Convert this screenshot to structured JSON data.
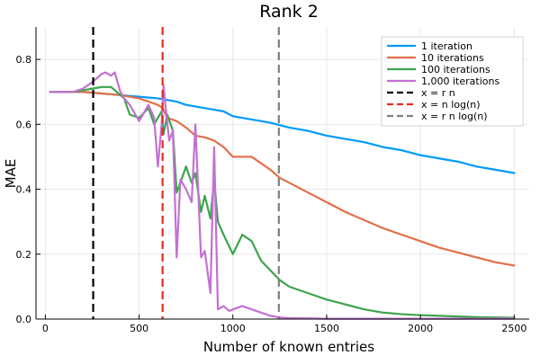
{
  "chart_data": {
    "type": "line",
    "title": "Rank 2",
    "xlabel": "Number of known entries",
    "ylabel": "MAE",
    "xlim": [
      -50,
      2580
    ],
    "ylim": [
      0.0,
      0.9
    ],
    "xticks": [
      0,
      500,
      1000,
      1500,
      2000,
      2500
    ],
    "xtick_labels": [
      "0",
      "500",
      "1000",
      "1500",
      "2000",
      "2500"
    ],
    "yticks": [
      0.0,
      0.2,
      0.4,
      0.6,
      0.8
    ],
    "ytick_labels": [
      "0.0",
      "0.2",
      "0.4",
      "0.6",
      "0.8"
    ],
    "grid": true,
    "legend_position": "top-right",
    "series": [
      {
        "name": "1 iteration",
        "color": "#009AFA",
        "x": [
          25,
          100,
          200,
          300,
          400,
          500,
          600,
          650,
          700,
          750,
          800,
          850,
          900,
          950,
          1000,
          1100,
          1200,
          1300,
          1400,
          1500,
          1600,
          1700,
          1800,
          1900,
          2000,
          2100,
          2200,
          2300,
          2400,
          2500
        ],
        "y": [
          0.7,
          0.7,
          0.7,
          0.695,
          0.69,
          0.685,
          0.68,
          0.675,
          0.67,
          0.66,
          0.655,
          0.65,
          0.645,
          0.64,
          0.625,
          0.615,
          0.605,
          0.59,
          0.58,
          0.565,
          0.555,
          0.545,
          0.53,
          0.52,
          0.505,
          0.495,
          0.485,
          0.47,
          0.46,
          0.45
        ]
      },
      {
        "name": "10 iterations",
        "color": "#E36F47",
        "x": [
          25,
          100,
          200,
          300,
          400,
          500,
          550,
          600,
          625,
          650,
          700,
          750,
          800,
          850,
          900,
          950,
          1000,
          1050,
          1100,
          1150,
          1200,
          1250,
          1300,
          1400,
          1500,
          1600,
          1700,
          1800,
          1900,
          2000,
          2100,
          2200,
          2300,
          2400,
          2500
        ],
        "y": [
          0.7,
          0.7,
          0.7,
          0.695,
          0.69,
          0.68,
          0.67,
          0.66,
          0.65,
          0.62,
          0.61,
          0.59,
          0.565,
          0.56,
          0.55,
          0.53,
          0.5,
          0.5,
          0.5,
          0.48,
          0.46,
          0.435,
          0.42,
          0.39,
          0.36,
          0.33,
          0.305,
          0.28,
          0.26,
          0.24,
          0.22,
          0.205,
          0.19,
          0.175,
          0.165
        ]
      },
      {
        "name": "100 iterations",
        "color": "#3DA44D",
        "x": [
          25,
          100,
          150,
          200,
          250,
          300,
          350,
          400,
          420,
          450,
          500,
          550,
          580,
          600,
          620,
          630,
          650,
          680,
          700,
          720,
          750,
          780,
          800,
          830,
          850,
          880,
          900,
          920,
          950,
          1000,
          1050,
          1100,
          1150,
          1200,
          1250,
          1300,
          1400,
          1500,
          1600,
          1700,
          1800,
          1900,
          2000,
          2100,
          2200,
          2300,
          2400,
          2500
        ],
        "y": [
          0.7,
          0.7,
          0.7,
          0.705,
          0.71,
          0.715,
          0.715,
          0.69,
          0.68,
          0.63,
          0.62,
          0.65,
          0.6,
          0.62,
          0.64,
          0.57,
          0.63,
          0.58,
          0.39,
          0.42,
          0.47,
          0.42,
          0.45,
          0.33,
          0.38,
          0.31,
          0.43,
          0.3,
          0.26,
          0.2,
          0.26,
          0.24,
          0.18,
          0.15,
          0.12,
          0.1,
          0.08,
          0.06,
          0.045,
          0.03,
          0.02,
          0.015,
          0.012,
          0.01,
          0.008,
          0.006,
          0.005,
          0.004
        ]
      },
      {
        "name": "1,000 iterations",
        "color": "#C271D2",
        "x": [
          25,
          100,
          150,
          200,
          250,
          300,
          320,
          350,
          370,
          400,
          420,
          450,
          500,
          550,
          580,
          600,
          620,
          630,
          640,
          660,
          680,
          700,
          720,
          750,
          780,
          800,
          830,
          850,
          880,
          900,
          920,
          950,
          980,
          1000,
          1050,
          1100,
          1150,
          1200,
          1250,
          1300,
          1400,
          1500,
          1600,
          1700,
          1800,
          1900,
          2000,
          2100,
          2200,
          2300,
          2400,
          2500
        ],
        "y": [
          0.7,
          0.7,
          0.7,
          0.71,
          0.73,
          0.755,
          0.76,
          0.75,
          0.76,
          0.7,
          0.68,
          0.66,
          0.61,
          0.66,
          0.62,
          0.47,
          0.6,
          0.72,
          0.66,
          0.55,
          0.58,
          0.19,
          0.43,
          0.4,
          0.36,
          0.6,
          0.19,
          0.21,
          0.08,
          0.53,
          0.03,
          0.04,
          0.025,
          0.03,
          0.04,
          0.03,
          0.02,
          0.01,
          0.005,
          0.003,
          0.002,
          0.001,
          0.001,
          0.001,
          0.001,
          0.001,
          0.001,
          0.001,
          0.001,
          0.001,
          0.001,
          0.001
        ]
      },
      {
        "name": "x = r n",
        "color": "#000000",
        "dashed": true,
        "vline": 255
      },
      {
        "name": "x = n log(n)",
        "color": "#E62B1E",
        "dashed": true,
        "vline": 625
      },
      {
        "name": "x = r n log(n)",
        "color": "#7F7F7F",
        "dashed": true,
        "vline": 1245
      }
    ]
  }
}
